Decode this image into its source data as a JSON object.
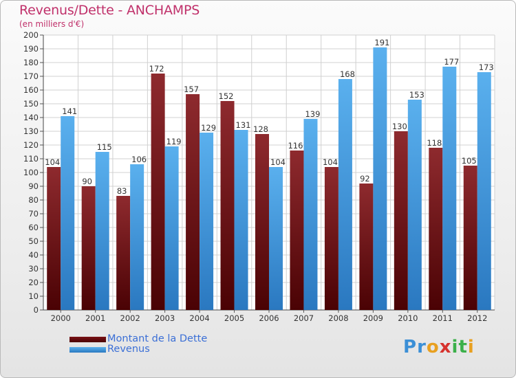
{
  "title": "Revenus/Dette - ANCHAMPS",
  "subtitle": "(en milliers d'€)",
  "logo": {
    "text": "Proxiti",
    "letters": [
      "P",
      "r",
      "o",
      "x",
      "i",
      "t",
      "i"
    ],
    "colors": [
      "#3b8fd6",
      "#3b8fd6",
      "#e8a020",
      "#d6332e",
      "#3bb04a",
      "#3bb04a",
      "#e8a020"
    ]
  },
  "legend": [
    {
      "label": "Montant de la Dette",
      "color": "#6b0b0e"
    },
    {
      "label": "Revenus",
      "color": "#3d9be0"
    }
  ],
  "chart_data": {
    "type": "bar",
    "categories": [
      "2000",
      "2001",
      "2002",
      "2003",
      "2004",
      "2005",
      "2006",
      "2007",
      "2008",
      "2009",
      "2010",
      "2011",
      "2012"
    ],
    "series": [
      {
        "name": "Montant de la Dette",
        "color": "#7a1a1e",
        "values": [
          104,
          90,
          83,
          172,
          157,
          152,
          128,
          116,
          104,
          92,
          130,
          118,
          105
        ]
      },
      {
        "name": "Revenus",
        "color": "#3d9be0",
        "values": [
          141,
          115,
          106,
          119,
          129,
          131,
          104,
          139,
          168,
          191,
          153,
          177,
          173
        ]
      }
    ],
    "ylim": [
      0,
      200
    ],
    "ytick_step": 10,
    "grid": true
  }
}
